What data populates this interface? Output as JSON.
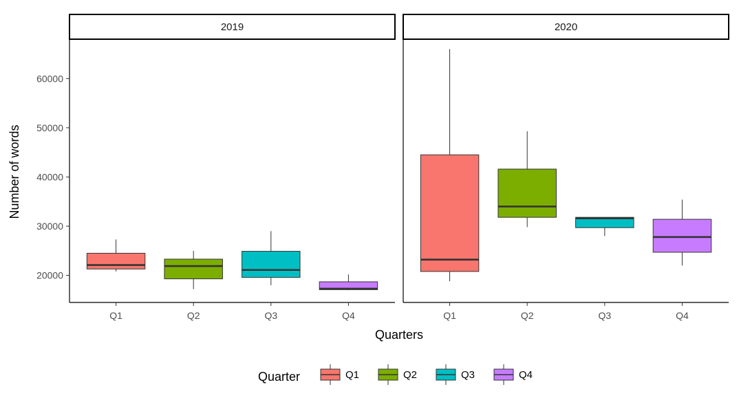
{
  "chart_data": {
    "type": "boxplot",
    "xlabel": "Quarters",
    "ylabel": "Number of words",
    "categories": [
      "Q1",
      "Q2",
      "Q3",
      "Q4"
    ],
    "yticks": [
      20000,
      30000,
      40000,
      50000,
      60000
    ],
    "ylim": [
      14500,
      68000
    ],
    "grid": false,
    "legend": {
      "title": "Quarter",
      "position": "bottom",
      "entries": [
        {
          "label": "Q1",
          "color": "#F8766D"
        },
        {
          "label": "Q2",
          "color": "#7CAE00"
        },
        {
          "label": "Q3",
          "color": "#00BFC4"
        },
        {
          "label": "Q4",
          "color": "#C77CFF"
        }
      ]
    },
    "panels": [
      {
        "label": "2019",
        "boxes": [
          {
            "category": "Q1",
            "min": 20800,
            "q1": 21300,
            "median": 22100,
            "q3": 24500,
            "max": 27300
          },
          {
            "category": "Q2",
            "min": 17200,
            "q1": 19300,
            "median": 21900,
            "q3": 23300,
            "max": 25000
          },
          {
            "category": "Q3",
            "min": 18000,
            "q1": 19600,
            "median": 21100,
            "q3": 24900,
            "max": 29000
          },
          {
            "category": "Q4",
            "min": 17000,
            "q1": 17100,
            "median": 17300,
            "q3": 18700,
            "max": 20200
          }
        ]
      },
      {
        "label": "2020",
        "boxes": [
          {
            "category": "Q1",
            "min": 18800,
            "q1": 20800,
            "median": 23200,
            "q3": 44500,
            "max": 66000
          },
          {
            "category": "Q2",
            "min": 29800,
            "q1": 31800,
            "median": 34000,
            "q3": 41600,
            "max": 49300
          },
          {
            "category": "Q3",
            "min": 28000,
            "q1": 29700,
            "median": 31600,
            "q3": 31800,
            "max": 31800
          },
          {
            "category": "Q4",
            "min": 22000,
            "q1": 24700,
            "median": 27800,
            "q3": 31400,
            "max": 35400
          }
        ]
      }
    ]
  }
}
